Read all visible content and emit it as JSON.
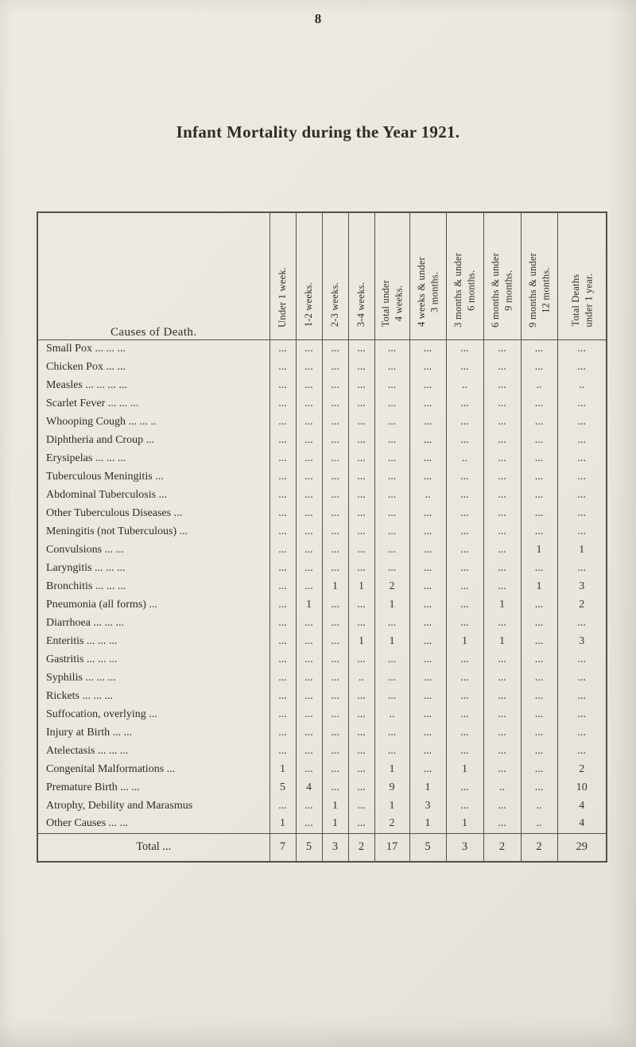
{
  "page": {
    "number": "8",
    "title": "Infant Mortality during the Year 1921."
  },
  "table": {
    "causes_header": "Causes of Death.",
    "column_headers": [
      "Under 1 week.",
      "1-2 weeks.",
      "2-3 weeks.",
      "3-4 weeks.",
      "Total under\n4 weeks.",
      "4 weeks & under\n3 months.",
      "3 months & under\n6 months.",
      "6 months & under\n9 months.",
      "9 months & under\n12 months.",
      "Total Deaths\nunder 1 year."
    ],
    "rows": [
      {
        "cause": "Small Pox ... ... ...",
        "values": [
          "...",
          "...",
          "...",
          "...",
          "...",
          "...",
          "...",
          "...",
          "...",
          "..."
        ]
      },
      {
        "cause": "Chicken Pox ... ...",
        "values": [
          "...",
          "...",
          "...",
          "...",
          "...",
          "...",
          "...",
          "...",
          "...",
          "..."
        ]
      },
      {
        "cause": "Measles ... ... ... ...",
        "values": [
          "...",
          "...",
          "...",
          "...",
          "...",
          "...",
          "..",
          "...",
          "..",
          ".."
        ]
      },
      {
        "cause": "Scarlet Fever ... ... ...",
        "values": [
          "...",
          "...",
          "...",
          "...",
          "...",
          "...",
          "...",
          "...",
          "...",
          "..."
        ]
      },
      {
        "cause": "Whooping Cough ... ... ..",
        "values": [
          "...",
          "...",
          "...",
          "...",
          "...",
          "...",
          "...",
          "...",
          "...",
          "..."
        ]
      },
      {
        "cause": "Diphtheria and Croup ...",
        "values": [
          "...",
          "...",
          "...",
          "...",
          "...",
          "...",
          "...",
          "...",
          "...",
          "..."
        ]
      },
      {
        "cause": "Erysipelas ... ... ...",
        "values": [
          "...",
          "...",
          "...",
          "...",
          "...",
          "...",
          "..",
          "...",
          "...",
          "..."
        ]
      },
      {
        "cause": "Tuberculous Meningitis ...",
        "values": [
          "...",
          "...",
          "...",
          "...",
          "...",
          "...",
          "...",
          "...",
          "...",
          "..."
        ]
      },
      {
        "cause": "Abdominal Tuberculosis ...",
        "values": [
          "...",
          "...",
          "...",
          "...",
          "...",
          "..",
          "...",
          "...",
          "...",
          "..."
        ]
      },
      {
        "cause": "Other Tuberculous Diseases ...",
        "values": [
          "...",
          "...",
          "...",
          "...",
          "...",
          "...",
          "...",
          "...",
          "...",
          "..."
        ]
      },
      {
        "cause": "Meningitis (not Tuberculous) ...",
        "values": [
          "...",
          "...",
          "...",
          "...",
          "...",
          "...",
          "...",
          "...",
          "...",
          "..."
        ]
      },
      {
        "cause": "Convulsions ... ...",
        "values": [
          "...",
          "...",
          "...",
          "...",
          "...",
          "...",
          "...",
          "...",
          "1",
          "1"
        ]
      },
      {
        "cause": "Laryngitis ... ... ...",
        "values": [
          "...",
          "...",
          "...",
          "...",
          "...",
          "...",
          "...",
          "...",
          "...",
          "..."
        ]
      },
      {
        "cause": "Bronchitis ... ... ...",
        "values": [
          "...",
          "...",
          "1",
          "1",
          "2",
          "...",
          "...",
          "...",
          "1",
          "3"
        ]
      },
      {
        "cause": "Pneumonia (all forms) ...",
        "values": [
          "...",
          "1",
          "...",
          "...",
          "1",
          "...",
          "...",
          "1",
          "...",
          "2"
        ]
      },
      {
        "cause": "Diarrhoea ... ... ...",
        "values": [
          "...",
          "...",
          "...",
          "...",
          "...",
          "...",
          "...",
          "...",
          "...",
          "..."
        ]
      },
      {
        "cause": "Enteritis ... ... ...",
        "values": [
          "...",
          "...",
          "...",
          "1",
          "1",
          "...",
          "1",
          "1",
          "...",
          "3"
        ]
      },
      {
        "cause": "Gastritis ... ... ...",
        "values": [
          "...",
          "...",
          "...",
          "...",
          "...",
          "...",
          "...",
          "...",
          "...",
          "..."
        ]
      },
      {
        "cause": "Syphilis ... ... ...",
        "values": [
          "...",
          "...",
          "...",
          "..",
          "...",
          "...",
          "...",
          "...",
          "...",
          "..."
        ]
      },
      {
        "cause": "Rickets ... ... ...",
        "values": [
          "...",
          "...",
          "...",
          "...",
          "...",
          "...",
          "...",
          "...",
          "...",
          "..."
        ]
      },
      {
        "cause": "Suffocation, overlying ...",
        "values": [
          "...",
          "...",
          "...",
          "...",
          "..",
          "...",
          "...",
          "...",
          "...",
          "..."
        ]
      },
      {
        "cause": "Injury at Birth ... ...",
        "values": [
          "...",
          "...",
          "...",
          "...",
          "...",
          "...",
          "...",
          "...",
          "...",
          "..."
        ]
      },
      {
        "cause": "Atelectasis ... ... ...",
        "values": [
          "...",
          "...",
          "...",
          "...",
          "...",
          "...",
          "...",
          "...",
          "...",
          "..."
        ]
      },
      {
        "cause": "Congenital Malformations ...",
        "values": [
          "1",
          "...",
          "...",
          "...",
          "1",
          "...",
          "1",
          "...",
          "...",
          "2"
        ]
      },
      {
        "cause": "Premature Birth ... ...",
        "values": [
          "5",
          "4",
          "...",
          "...",
          "9",
          "1",
          "...",
          "..",
          "...",
          "10"
        ]
      },
      {
        "cause": "Atrophy, Debility and Marasmus",
        "values": [
          "...",
          "...",
          "1",
          "...",
          "1",
          "3",
          "...",
          "...",
          "..",
          "4"
        ]
      },
      {
        "cause": "Other Causes ... ...",
        "values": [
          "1",
          "...",
          "1",
          "...",
          "2",
          "1",
          "1",
          "...",
          "..",
          "4"
        ]
      }
    ],
    "total_row": {
      "label": "Total ...",
      "values": [
        "7",
        "5",
        "3",
        "2",
        "17",
        "5",
        "3",
        "2",
        "2",
        "29"
      ]
    }
  }
}
